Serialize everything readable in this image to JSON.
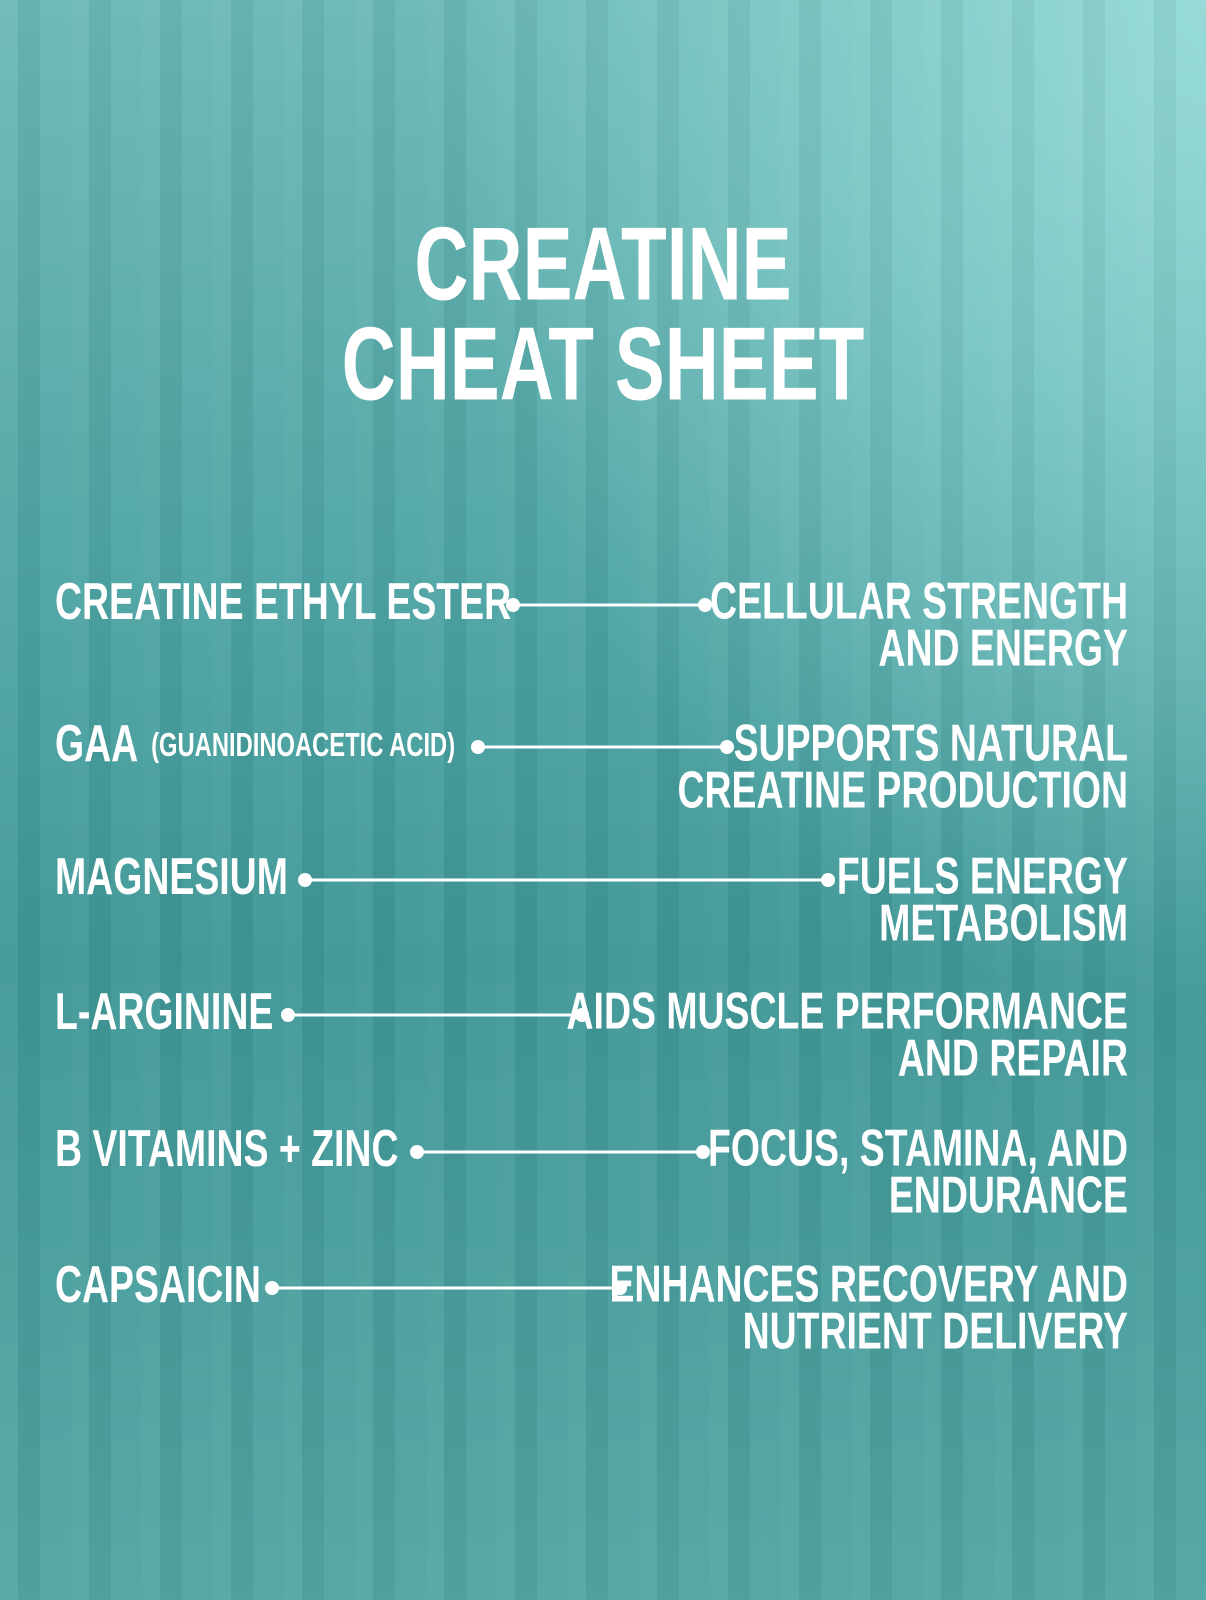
{
  "header": {
    "title": [
      "CREATINE",
      "CHEAT SHEET"
    ]
  },
  "items": [
    {
      "ingredient": "CREATINE ETHYL ESTER",
      "benefit": [
        "CELLULAR STRENGTH",
        "AND ENERGY"
      ]
    },
    {
      "ingredient": "GAA",
      "note": "(GUANIDINOACETIC ACID)",
      "benefit": [
        "SUPPORTS NATURAL",
        "CREATINE PRODUCTION"
      ]
    },
    {
      "ingredient": "MAGNESIUM",
      "benefit": [
        "FUELS ENERGY",
        "METABOLISM"
      ]
    },
    {
      "ingredient": "L-ARGININE",
      "benefit": [
        "AIDS MUSCLE PERFORMANCE",
        "AND REPAIR"
      ]
    },
    {
      "ingredient": "B VITAMINS + ZINC",
      "benefit": [
        "FOCUS, STAMINA, AND",
        "ENDURANCE"
      ]
    },
    {
      "ingredient": "CAPSAICIN",
      "benefit": [
        "ENHANCES RECOVERY AND",
        "NUTRIENT DELIVERY"
      ]
    }
  ]
}
